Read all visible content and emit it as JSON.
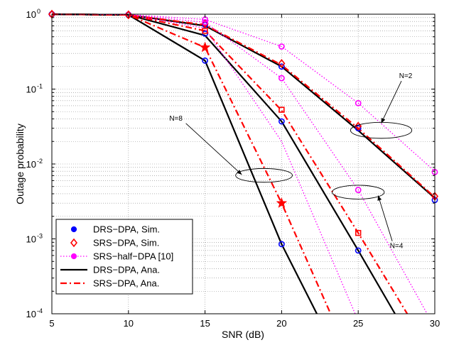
{
  "chart_data": {
    "type": "line",
    "xlabel": "SNR (dB)",
    "ylabel": "Outage probability",
    "xlim": [
      5,
      30
    ],
    "ylim": [
      0.0001,
      1
    ],
    "yscale": "log",
    "grid": true,
    "legend_position": "bottom-left",
    "x_ticks": [
      "5",
      "10",
      "15",
      "20",
      "25",
      "30"
    ],
    "x_tick_values": [
      5,
      10,
      15,
      20,
      25,
      30
    ],
    "y_ticks": [
      {
        "value": 1,
        "base": "10",
        "exp": "0"
      },
      {
        "value": 0.1,
        "base": "10",
        "exp": "-1"
      },
      {
        "value": 0.01,
        "base": "10",
        "exp": "-2"
      },
      {
        "value": 0.001,
        "base": "10",
        "exp": "-3"
      },
      {
        "value": 0.0001,
        "base": "10",
        "exp": "-4"
      }
    ],
    "legend": [
      {
        "label": "DRS−DPA, Sim.",
        "style": "dot",
        "color": "#0000ff"
      },
      {
        "label": "SRS−DPA, Sim.",
        "style": "diamond",
        "color": "#ff0000"
      },
      {
        "label": "SRS−half−DPA [10]",
        "style": "dotted-dot",
        "color": "#ff00ff"
      },
      {
        "label": "DRS−DPA, Ana.",
        "style": "solid",
        "color": "#000000"
      },
      {
        "label": "SRS−DPA, Ana.",
        "style": "dashdot",
        "color": "#ff0000"
      }
    ],
    "series": [
      {
        "group": "N=2",
        "kind": "analytic",
        "style": "solid",
        "color": "#000000",
        "x": [
          5,
          10,
          15,
          20,
          25,
          30
        ],
        "y": [
          1,
          0.98,
          0.7,
          0.2,
          0.028,
          0.0035
        ]
      },
      {
        "group": "N=2",
        "kind": "analytic",
        "style": "dashdot",
        "color": "#ff0000",
        "x": [
          5,
          10,
          15,
          20,
          25,
          30
        ],
        "y": [
          1,
          0.98,
          0.72,
          0.21,
          0.03,
          0.0036
        ]
      },
      {
        "group": "N=2",
        "kind": "halfdpa",
        "style": "dotted",
        "color": "#ff00ff",
        "x": [
          5,
          10,
          15,
          20,
          25,
          30
        ],
        "y": [
          1,
          0.99,
          0.85,
          0.37,
          0.065,
          0.008
        ]
      },
      {
        "group": "N=2",
        "kind": "sim",
        "marker": "circle",
        "color": "#0000ff",
        "x": [
          5,
          10,
          15,
          20,
          25,
          30
        ],
        "y": [
          1,
          0.98,
          0.72,
          0.2,
          0.03,
          0.0033
        ]
      },
      {
        "group": "N=2",
        "kind": "sim",
        "marker": "diamond",
        "color": "#ff0000",
        "x": [
          5,
          10,
          15,
          20,
          25,
          30
        ],
        "y": [
          1,
          0.98,
          0.75,
          0.22,
          0.032,
          0.0037
        ]
      },
      {
        "group": "N=2",
        "kind": "sim",
        "marker": "circle",
        "color": "#ff00ff",
        "x": [
          5,
          10,
          15,
          20,
          25,
          30
        ],
        "y": [
          1,
          0.99,
          0.85,
          0.37,
          0.065,
          0.0078
        ]
      },
      {
        "group": "N=4",
        "kind": "analytic",
        "style": "solid",
        "color": "#000000",
        "x": [
          5,
          10,
          15,
          20,
          25,
          27.4
        ],
        "y": [
          1,
          0.98,
          0.52,
          0.037,
          0.0007,
          0.0001
        ]
      },
      {
        "group": "N=4",
        "kind": "analytic",
        "style": "dashdot",
        "color": "#ff0000",
        "x": [
          5,
          10,
          15,
          20,
          25,
          28.2
        ],
        "y": [
          1,
          0.98,
          0.6,
          0.052,
          0.0012,
          0.0001
        ]
      },
      {
        "group": "N=4",
        "kind": "halfdpa",
        "style": "dotted",
        "color": "#ff00ff",
        "x": [
          5,
          10,
          15,
          20,
          25,
          29.5
        ],
        "y": [
          1,
          0.99,
          0.78,
          0.14,
          0.0045,
          0.0001
        ]
      },
      {
        "group": "N=4",
        "kind": "sim",
        "marker": "circle",
        "color": "#0000ff",
        "x": [
          15,
          20,
          25
        ],
        "y": [
          0.55,
          0.037,
          0.0007
        ]
      },
      {
        "group": "N=4",
        "kind": "sim",
        "marker": "square",
        "color": "#ff0000",
        "x": [
          15,
          20,
          25
        ],
        "y": [
          0.6,
          0.053,
          0.0012
        ]
      },
      {
        "group": "N=4",
        "kind": "sim",
        "marker": "circle",
        "color": "#ff00ff",
        "x": [
          15,
          20,
          25
        ],
        "y": [
          0.78,
          0.14,
          0.0045
        ]
      },
      {
        "group": "N=8",
        "kind": "analytic",
        "style": "solid",
        "color": "#000000",
        "x": [
          5,
          10,
          15,
          20,
          22.3
        ],
        "y": [
          1,
          0.98,
          0.24,
          0.00085,
          0.0001
        ]
      },
      {
        "group": "N=8",
        "kind": "analytic",
        "style": "dashdot",
        "color": "#ff0000",
        "x": [
          5,
          10,
          15,
          20,
          23.2
        ],
        "y": [
          1,
          0.98,
          0.36,
          0.003,
          0.0001
        ]
      },
      {
        "group": "N=8",
        "kind": "halfdpa",
        "style": "dotted",
        "color": "#ff00ff",
        "x": [
          5,
          10,
          15,
          20,
          24.8
        ],
        "y": [
          1,
          0.99,
          0.65,
          0.02,
          0.0001
        ]
      },
      {
        "group": "N=8",
        "kind": "sim",
        "marker": "circle",
        "color": "#0000ff",
        "x": [
          15,
          20
        ],
        "y": [
          0.24,
          0.00085
        ]
      },
      {
        "group": "N=8",
        "kind": "sim",
        "marker": "star",
        "color": "#ff0000",
        "x": [
          15,
          20
        ],
        "y": [
          0.36,
          0.003
        ]
      },
      {
        "group": "common",
        "kind": "sim",
        "marker": "circle",
        "color": "#0000ff",
        "x": [
          5,
          10
        ],
        "y": [
          1,
          0.98
        ]
      },
      {
        "group": "common",
        "kind": "sim",
        "marker": "diamond",
        "color": "#ff0000",
        "x": [
          5,
          10
        ],
        "y": [
          1,
          0.98
        ]
      }
    ],
    "annotations": [
      {
        "text": "N=2",
        "at": [
          26.5,
          0.028
        ],
        "ellipse_rx": [
          24.5,
          28.5
        ],
        "ellipse_ry": [
          0.022,
          0.036
        ],
        "label_at": [
          28.1,
          0.14
        ],
        "arrow_to": [
          26.5,
          0.035
        ]
      },
      {
        "text": "N=4",
        "at": [
          25.0,
          0.0042
        ],
        "ellipse_rx": [
          23.3,
          26.7
        ],
        "ellipse_ry": [
          0.0034,
          0.0052
        ],
        "label_at": [
          27.5,
          0.00075
        ],
        "arrow_to": [
          26.3,
          0.0038
        ]
      },
      {
        "text": "N=8",
        "at": [
          18.8,
          0.007
        ],
        "ellipse_rx": [
          17.0,
          20.7
        ],
        "ellipse_ry": [
          0.0057,
          0.0087
        ],
        "label_at": [
          13.1,
          0.038
        ],
        "arrow_to": [
          17.4,
          0.0072
        ]
      }
    ]
  }
}
